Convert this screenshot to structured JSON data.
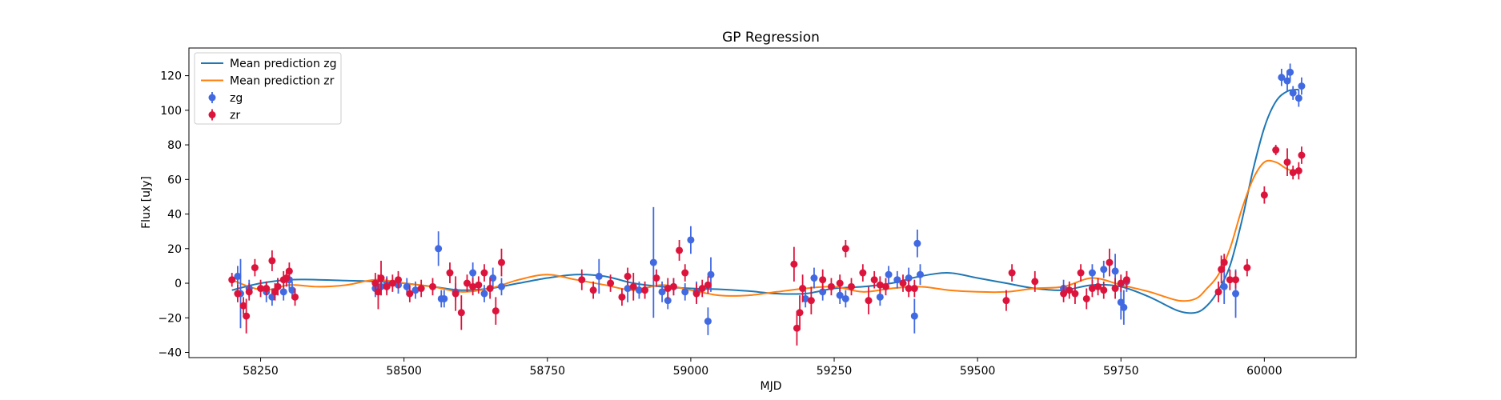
{
  "chart_data": {
    "type": "scatter",
    "title": "GP Regression",
    "xlabel": "MJD",
    "ylabel": "Flux [uJy]",
    "xlim": [
      58125,
      60160
    ],
    "ylim": [
      -43,
      136
    ],
    "xticks": [
      58250,
      58500,
      58750,
      59000,
      59250,
      59500,
      59750,
      60000
    ],
    "yticks": [
      -40,
      -20,
      0,
      20,
      40,
      60,
      80,
      100,
      120
    ],
    "grid": false,
    "legend_position": "upper-left",
    "legend": [
      {
        "label": "Mean prediction zg",
        "kind": "line",
        "color": "#1f77b4"
      },
      {
        "label": "Mean prediction zr",
        "kind": "line",
        "color": "#ff7f0e"
      },
      {
        "label": "zg",
        "kind": "errorbar",
        "color": "#4169e1"
      },
      {
        "label": "zr",
        "kind": "errorbar",
        "color": "#dc143c"
      }
    ],
    "series": [
      {
        "name": "Mean prediction zg",
        "kind": "line",
        "color": "#1f77b4",
        "x": [
          58200,
          58250,
          58300,
          58350,
          58400,
          58450,
          58500,
          58550,
          58600,
          58650,
          58700,
          58750,
          58800,
          58850,
          58900,
          58950,
          59000,
          59050,
          59100,
          59150,
          59200,
          59250,
          59300,
          59350,
          59400,
          59450,
          59500,
          59550,
          59600,
          59650,
          59700,
          59750,
          59800,
          59850,
          59880,
          59900,
          59920,
          59940,
          59960,
          59980,
          60000,
          60020,
          60040,
          60060
        ],
        "y": [
          -4,
          0,
          2,
          2,
          1.5,
          1,
          0,
          -2,
          -4,
          -3,
          0,
          3,
          5,
          4,
          0,
          -2,
          -3,
          -3.5,
          -4.5,
          -6,
          -6,
          -3,
          -2,
          0,
          4,
          6,
          3,
          0,
          -3,
          -4,
          -1,
          -2,
          -8,
          -16,
          -17,
          -13,
          -4,
          10,
          35,
          65,
          90,
          105,
          111,
          112
        ]
      },
      {
        "name": "Mean prediction zr",
        "kind": "line",
        "color": "#ff7f0e",
        "x": [
          58200,
          58230,
          58260,
          58300,
          58350,
          58400,
          58450,
          58500,
          58550,
          58600,
          58650,
          58700,
          58750,
          58800,
          58850,
          58900,
          58950,
          59000,
          59050,
          59100,
          59150,
          59200,
          59250,
          59300,
          59350,
          59400,
          59450,
          59500,
          59550,
          59600,
          59650,
          59700,
          59750,
          59800,
          59850,
          59880,
          59900,
          59920,
          59940,
          59960,
          59980,
          60000,
          60020,
          60040,
          60060
        ],
        "y": [
          2,
          -2,
          -4,
          -1,
          -2,
          -1,
          2,
          0,
          -2,
          -5,
          -3,
          2,
          5,
          2,
          -1,
          -4,
          -1,
          -4,
          -7,
          -7,
          -5,
          -3,
          -2,
          -5,
          -3,
          -2,
          -4,
          -5,
          -5,
          -3,
          -2,
          3,
          -1,
          -5,
          -10,
          -9,
          -3,
          5,
          20,
          42,
          60,
          70,
          70,
          66,
          64
        ]
      },
      {
        "name": "zg",
        "kind": "errorbar",
        "color": "#4169e1",
        "x": [
          58210,
          58215,
          58230,
          58260,
          58270,
          58280,
          58290,
          58300,
          58305,
          58450,
          58460,
          58470,
          58490,
          58505,
          58520,
          58560,
          58565,
          58570,
          58590,
          58620,
          58640,
          58655,
          58670,
          58840,
          58890,
          58910,
          58935,
          58950,
          58960,
          58970,
          58990,
          59000,
          59010,
          59030,
          59035,
          59200,
          59215,
          59230,
          59260,
          59270,
          59330,
          59345,
          59360,
          59380,
          59390,
          59395,
          59400,
          59650,
          59700,
          59720,
          59740,
          59750,
          59755,
          59760,
          59930,
          59950,
          60030,
          60040,
          60045,
          60050,
          60060,
          60065
        ],
        "y": [
          4,
          -6,
          -3,
          -5,
          -8,
          -2,
          -5,
          2,
          -4,
          -3,
          -2,
          -1,
          -1,
          -2,
          -4,
          20,
          -9,
          -9,
          -5,
          6,
          -6,
          3,
          -2,
          4,
          -3,
          -4,
          12,
          -5,
          -10,
          -2,
          -5,
          25,
          -5,
          -22,
          5,
          -9,
          3,
          -5,
          -7,
          -9,
          -8,
          5,
          2,
          3,
          -19,
          23,
          5,
          -3,
          6,
          8,
          7,
          -11,
          -14,
          1,
          -2,
          -6,
          119,
          117,
          122,
          110,
          107,
          114
        ],
        "err": [
          6,
          20,
          5,
          6,
          5,
          5,
          5,
          6,
          5,
          5,
          5,
          5,
          5,
          5,
          5,
          10,
          5,
          5,
          5,
          6,
          5,
          6,
          5,
          10,
          8,
          5,
          32,
          6,
          5,
          5,
          5,
          8,
          6,
          8,
          10,
          5,
          6,
          5,
          5,
          5,
          5,
          5,
          5,
          6,
          10,
          8,
          6,
          5,
          5,
          5,
          10,
          10,
          10,
          6,
          10,
          14,
          5,
          6,
          5,
          4,
          5,
          5
        ]
      },
      {
        "name": "zr",
        "kind": "errorbar",
        "color": "#dc143c",
        "x": [
          58200,
          58210,
          58220,
          58225,
          58230,
          58240,
          58250,
          58260,
          58270,
          58275,
          58280,
          58290,
          58295,
          58300,
          58310,
          58450,
          58455,
          58460,
          58470,
          58480,
          58490,
          58510,
          58530,
          58550,
          58580,
          58590,
          58600,
          58610,
          58620,
          58630,
          58640,
          58650,
          58660,
          58670,
          58810,
          58830,
          58860,
          58880,
          58890,
          58900,
          58920,
          58940,
          58960,
          58970,
          58980,
          58990,
          59010,
          59020,
          59030,
          59180,
          59185,
          59190,
          59195,
          59210,
          59230,
          59245,
          59260,
          59270,
          59280,
          59300,
          59310,
          59320,
          59330,
          59340,
          59370,
          59380,
          59390,
          59550,
          59560,
          59600,
          59650,
          59660,
          59670,
          59680,
          59690,
          59700,
          59710,
          59720,
          59730,
          59740,
          59750,
          59760,
          59920,
          59925,
          59930,
          59940,
          59950,
          59970,
          60000,
          60020,
          60040,
          60050,
          60060,
          60065
        ],
        "y": [
          2,
          -6,
          -13,
          -19,
          -5,
          9,
          -3,
          -3,
          13,
          -5,
          -2,
          2,
          3,
          7,
          -8,
          0,
          -5,
          3,
          -2,
          0,
          2,
          -6,
          -3,
          -2,
          6,
          -6,
          -17,
          0,
          -2,
          -1,
          6,
          -3,
          -16,
          12,
          2,
          -4,
          0,
          -8,
          4,
          -2,
          -4,
          3,
          -3,
          -2,
          19,
          6,
          -6,
          -3,
          -1,
          11,
          -26,
          -17,
          -3,
          -10,
          2,
          -2,
          0,
          20,
          -2,
          6,
          -10,
          2,
          -1,
          -2,
          0,
          -3,
          -3,
          -10,
          6,
          1,
          -6,
          -4,
          -6,
          6,
          -9,
          -3,
          -2,
          -4,
          12,
          -3,
          0,
          2,
          -5,
          8,
          12,
          2,
          2,
          9,
          51,
          77,
          70,
          64,
          65,
          74
        ],
        "err": [
          4,
          5,
          5,
          10,
          5,
          5,
          5,
          4,
          6,
          5,
          5,
          5,
          5,
          5,
          5,
          6,
          10,
          10,
          5,
          5,
          5,
          5,
          5,
          5,
          6,
          10,
          10,
          5,
          5,
          5,
          5,
          6,
          8,
          8,
          6,
          5,
          5,
          5,
          5,
          8,
          5,
          5,
          6,
          5,
          6,
          5,
          6,
          5,
          5,
          10,
          10,
          10,
          8,
          8,
          6,
          5,
          5,
          5,
          5,
          5,
          8,
          5,
          5,
          5,
          5,
          5,
          5,
          6,
          5,
          6,
          5,
          5,
          6,
          5,
          6,
          5,
          5,
          5,
          8,
          6,
          5,
          5,
          6,
          8,
          5,
          6,
          5,
          5,
          5,
          3,
          8,
          4,
          5,
          5
        ]
      }
    ]
  }
}
